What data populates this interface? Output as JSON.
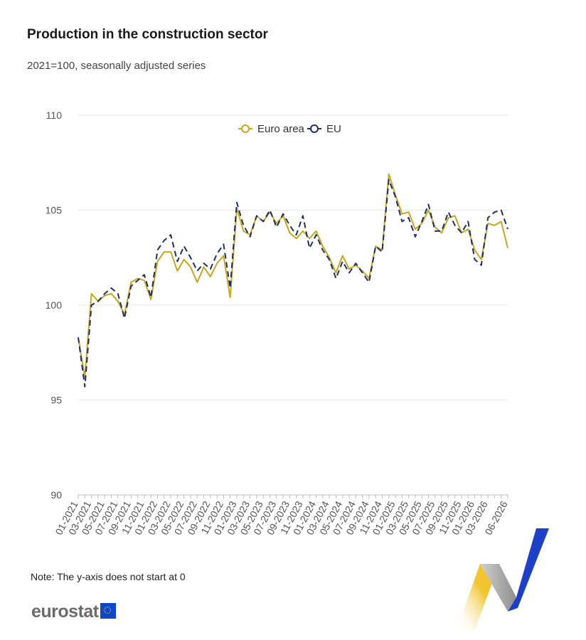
{
  "title": "Production in the construction sector",
  "subtitle": "2021=100, seasonally adjusted series",
  "note": "Note: The y-axis does not start at 0",
  "logo_text": "eurostat",
  "colors": {
    "euro_area": "#c8a61a",
    "eu": "#1f2f6b",
    "grid": "#e6e6e6",
    "logo_blue": "#0e47cb",
    "logo_yellow": "#f2c530"
  },
  "chart_data": {
    "type": "line",
    "title": "Production in the construction sector",
    "subtitle": "2021=100, seasonally adjusted series",
    "ylim": [
      90,
      110
    ],
    "yticks": [
      90,
      95,
      100,
      105,
      110
    ],
    "grid": true,
    "legend": "top-center",
    "x": [
      "01-2021",
      "02-2021",
      "03-2021",
      "04-2021",
      "05-2021",
      "06-2021",
      "07-2021",
      "08-2021",
      "09-2021",
      "10-2021",
      "11-2021",
      "12-2021",
      "01-2022",
      "02-2022",
      "03-2022",
      "04-2022",
      "05-2022",
      "06-2022",
      "07-2022",
      "08-2022",
      "09-2022",
      "10-2022",
      "11-2022",
      "12-2022",
      "01-2023",
      "02-2023",
      "03-2023",
      "04-2023",
      "05-2023",
      "06-2023",
      "07-2023",
      "08-2023",
      "09-2023",
      "10-2023",
      "11-2023",
      "12-2023",
      "01-2024",
      "02-2024",
      "03-2024",
      "04-2024",
      "05-2024",
      "06-2024",
      "07-2024",
      "08-2024",
      "09-2024",
      "10-2024",
      "11-2024",
      "12-2024",
      "01-2025",
      "02-2025",
      "03-2025",
      "04-2025",
      "05-2025",
      "06-2025",
      "07-2025",
      "08-2025",
      "09-2025",
      "10-2025",
      "11-2025",
      "12-2025",
      "01-2026",
      "02-2026",
      "03-2026",
      "04-2026",
      "05-2026",
      "06-2026"
    ],
    "tick_labels": [
      "01-2021",
      "03-2021",
      "05-2021",
      "07-2021",
      "09-2021",
      "11-2021",
      "01-2022",
      "03-2022",
      "05-2022",
      "07-2022",
      "09-2022",
      "11-2022",
      "01-2023",
      "03-2023",
      "05-2023",
      "07-2023",
      "09-2023",
      "11-2023",
      "01-2024",
      "03-2024",
      "05-2024",
      "07-2024",
      "09-2024",
      "11-2024",
      "01-2025",
      "03-2025",
      "05-2025",
      "07-2025",
      "09-2025",
      "11-2025",
      "01-2026",
      "03-2026",
      "06-2026"
    ],
    "series": [
      {
        "name": "Euro area",
        "values": [
          98.3,
          96.2,
          100.6,
          100.2,
          100.5,
          100.6,
          100.2,
          99.5,
          101.2,
          101.4,
          101.3,
          100.3,
          102.3,
          102.8,
          102.8,
          101.8,
          102.4,
          102.0,
          101.2,
          102.0,
          101.5,
          102.2,
          102.6,
          100.4,
          105.1,
          103.9,
          103.7,
          104.7,
          104.4,
          104.9,
          104.3,
          104.7,
          103.8,
          103.5,
          103.9,
          103.5,
          103.9,
          103.1,
          102.5,
          101.7,
          102.6,
          101.9,
          102.1,
          101.8,
          101.4,
          103.1,
          102.9,
          106.9,
          105.8,
          104.8,
          104.9,
          104.0,
          104.3,
          105.0,
          104.1,
          103.8,
          104.6,
          104.7,
          103.8,
          104.0,
          102.9,
          102.4,
          104.3,
          104.2,
          104.4,
          103.0
        ],
        "color": "#c8a61a",
        "dash": false
      },
      {
        "name": "EU",
        "values": [
          98.3,
          95.7,
          100.0,
          100.2,
          100.6,
          100.9,
          100.6,
          99.3,
          101.0,
          101.3,
          101.6,
          100.4,
          102.9,
          103.4,
          103.7,
          102.3,
          103.1,
          102.5,
          101.8,
          102.2,
          101.9,
          102.7,
          103.2,
          100.9,
          105.4,
          104.2,
          103.6,
          104.7,
          104.4,
          105.0,
          104.1,
          104.8,
          104.2,
          103.7,
          104.7,
          103.0,
          103.7,
          102.9,
          102.4,
          101.4,
          102.3,
          101.7,
          102.2,
          101.7,
          101.2,
          103.1,
          102.8,
          106.6,
          105.7,
          104.4,
          104.6,
          103.6,
          104.4,
          105.3,
          103.9,
          103.9,
          104.9,
          104.2,
          103.8,
          104.4,
          102.4,
          102.1,
          104.6,
          104.9,
          105.0,
          104.0
        ],
        "color": "#1f2f6b",
        "dash": true
      }
    ]
  }
}
